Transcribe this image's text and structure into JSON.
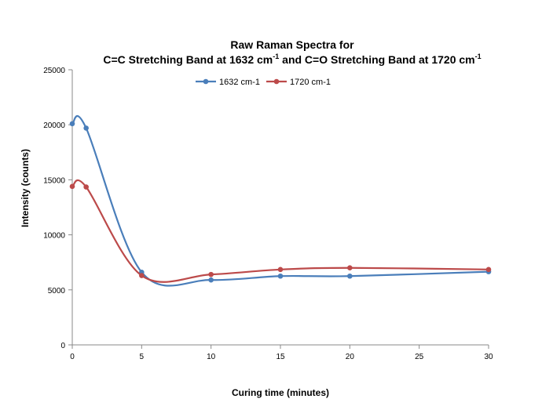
{
  "chart_data": {
    "type": "line",
    "title_line1": "Raw Raman Spectra for",
    "title_line2": {
      "part1": "C=C Stretching Band at 1632 cm",
      "sup1": "-1",
      "part2": " and C=O Stretching Band at 1720 cm",
      "sup2": "-1"
    },
    "xlabel": "Curing time (minutes)",
    "ylabel": "Intensity (counts)",
    "xlim": [
      0,
      30
    ],
    "ylim": [
      0,
      25000
    ],
    "xticks": [
      0,
      5,
      10,
      15,
      20,
      25,
      30
    ],
    "yticks": [
      0,
      5000,
      10000,
      15000,
      20000,
      25000
    ],
    "grid": false,
    "legend_position": "top-center",
    "smooth": true,
    "series": [
      {
        "name": "1632 cm-1",
        "color": "#4a7eba",
        "points": [
          {
            "x": 0,
            "y": 20100
          },
          {
            "x": 1,
            "y": 19700
          },
          {
            "x": 5,
            "y": 6600
          },
          {
            "x": 10,
            "y": 5900
          },
          {
            "x": 15,
            "y": 6250
          },
          {
            "x": 20,
            "y": 6250
          },
          {
            "x": 30,
            "y": 6650
          }
        ]
      },
      {
        "name": "1720 cm-1",
        "color": "#bc4a4a",
        "points": [
          {
            "x": 0,
            "y": 14400
          },
          {
            "x": 1,
            "y": 14350
          },
          {
            "x": 5,
            "y": 6300
          },
          {
            "x": 10,
            "y": 6400
          },
          {
            "x": 15,
            "y": 6850
          },
          {
            "x": 20,
            "y": 7000
          },
          {
            "x": 30,
            "y": 6850
          }
        ]
      }
    ]
  }
}
